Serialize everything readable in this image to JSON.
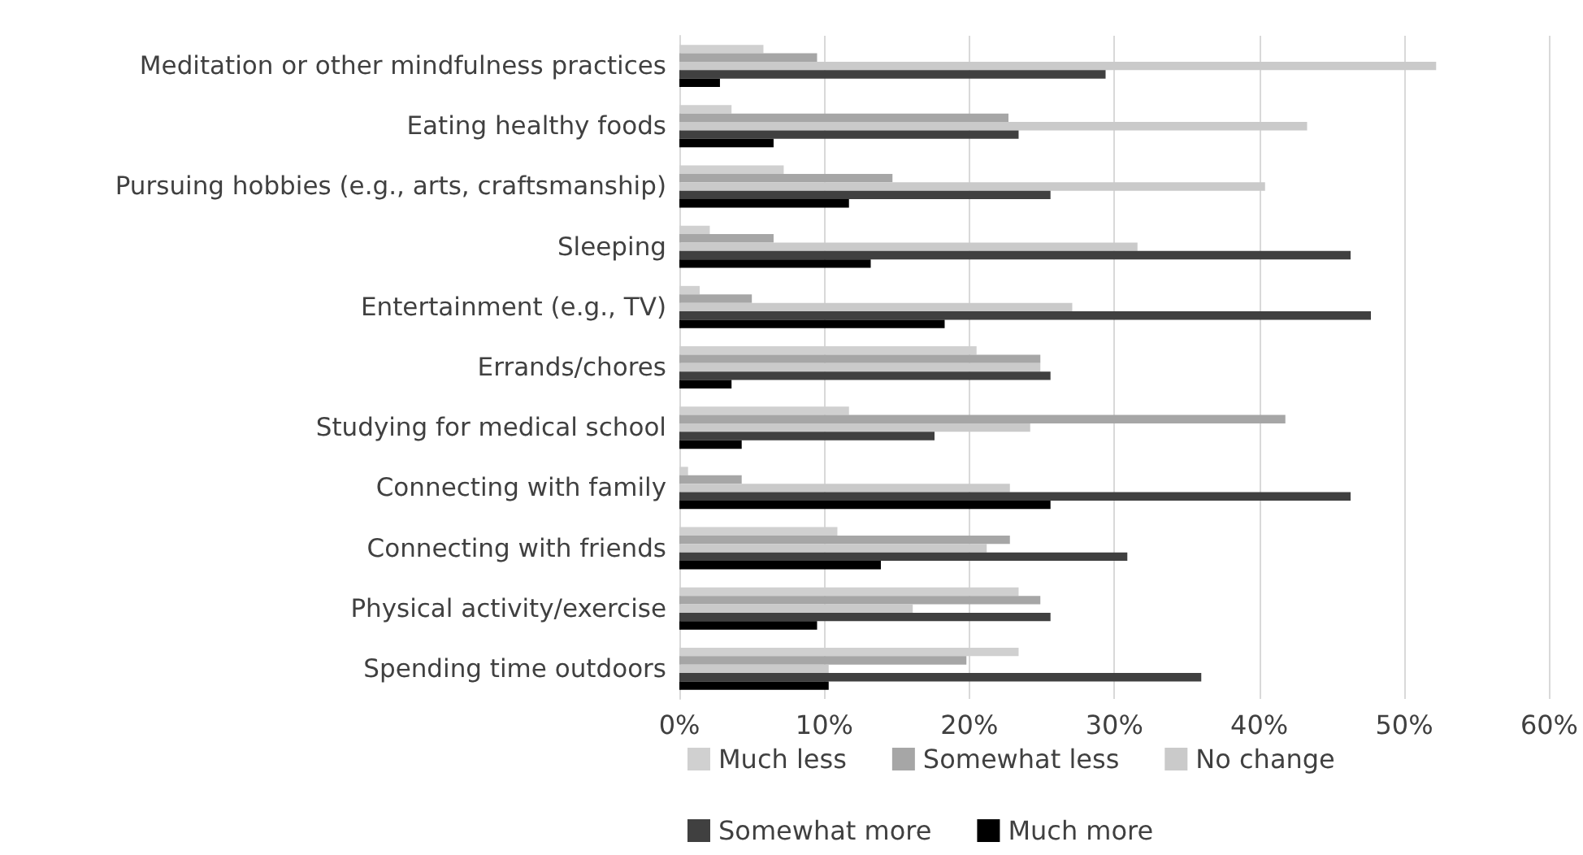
{
  "chart_data": {
    "type": "bar",
    "orientation": "horizontal",
    "categories": [
      "Meditation or other mindfulness practices",
      "Eating healthy foods",
      "Pursuing hobbies (e.g., arts, craftsmanship)",
      "Sleeping",
      "Entertainment (e.g., TV)",
      "Errands/chores",
      "Studying for medical school",
      "Connecting with family",
      "Connecting with friends",
      "Physical activity/exercise",
      "Spending time outdoors"
    ],
    "series": [
      {
        "name": "Much less",
        "color": "#d0d0d0",
        "values": [
          5.8,
          3.6,
          7.2,
          2.1,
          1.4,
          20.5,
          11.7,
          0.6,
          10.9,
          23.4,
          23.4
        ]
      },
      {
        "name": "Somewhat less",
        "color": "#a6a6a6",
        "values": [
          9.5,
          22.7,
          14.7,
          6.5,
          5.0,
          24.9,
          41.8,
          4.3,
          22.8,
          24.9,
          19.8
        ]
      },
      {
        "name": "No change",
        "color": "#cacaca",
        "values": [
          52.2,
          43.3,
          40.4,
          31.6,
          27.1,
          24.9,
          24.2,
          22.8,
          21.2,
          16.1,
          10.3
        ]
      },
      {
        "name": "Somewhat more",
        "color": "#404040",
        "values": [
          29.4,
          23.4,
          25.6,
          46.3,
          47.7,
          25.6,
          17.6,
          46.3,
          30.9,
          25.6,
          36.0
        ]
      },
      {
        "name": "Much more",
        "color": "#000000",
        "values": [
          2.8,
          6.5,
          11.7,
          13.2,
          18.3,
          3.6,
          4.3,
          25.6,
          13.9,
          9.5,
          10.3
        ]
      }
    ],
    "xlim": [
      0,
      60
    ],
    "xticks": [
      {
        "value": 0,
        "label": "0%"
      },
      {
        "value": 10,
        "label": "10%"
      },
      {
        "value": 20,
        "label": "20%"
      },
      {
        "value": 30,
        "label": "30%"
      },
      {
        "value": 40,
        "label": "40%"
      },
      {
        "value": 50,
        "label": "50%"
      },
      {
        "value": 60,
        "label": "60%"
      }
    ],
    "grid": "x",
    "legend": "bottom"
  }
}
